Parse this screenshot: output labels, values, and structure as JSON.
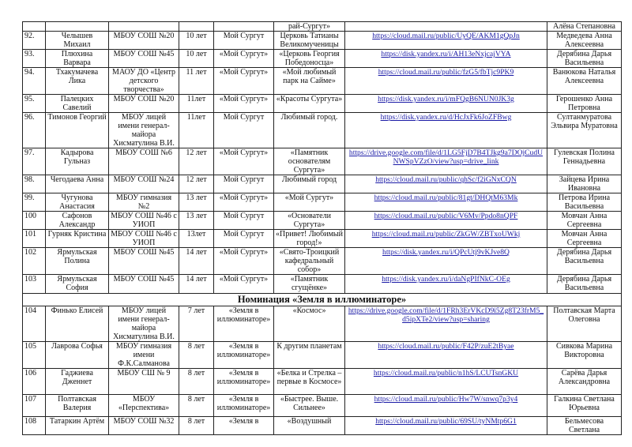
{
  "table": {
    "top_row": {
      "num": "",
      "name": "",
      "school": "",
      "age": "",
      "nomination": "",
      "title": "рай-Сургут»",
      "link": "",
      "teacher": "Алёна Степановна"
    },
    "rows_before": [
      {
        "num": "92.",
        "name": "Челышев Михаил",
        "school": "МБОУ СОШ №20",
        "age": "10 лет",
        "nomination": "Мой Сургут",
        "title": "Церковь Татианы Великомученицы",
        "link": "https://cloud.mail.ru/public/UyQE/AKM1gQpJn",
        "teacher": "Медведева Анна Алексеевна"
      },
      {
        "num": "93.",
        "name": "Плюхина Варвара",
        "school": "МБОУ СОШ №45",
        "age": "10 лет",
        "nomination": "«Мой Сургут»",
        "title": "«Церковь Георгия Победоносца»",
        "link": "https://disk.yandex.ru/i/AH13eNxjcajVYA",
        "teacher": "Дерябина Дарья Васильевна"
      },
      {
        "num": "94.",
        "name": "Тхакумачева Лика",
        "school": "МАОУ ДО «Центр детского творчества»",
        "age": "11 лет",
        "nomination": "«Мой Сургут»",
        "title": "«Мой любимый парк на Сайме»",
        "link": "https://cloud.mail.ru/public/fzG5/fbTjc9PK9",
        "teacher": "Ванюкова Наталья Алексеевна"
      },
      {
        "num": "95.",
        "name": "Палецких Савелий",
        "school": "МБОУ СОШ №20",
        "age": "11лет",
        "nomination": "«Мой Сургут»",
        "title": "«Красоты Сургута»",
        "link": "https://disk.yandex.ru/i/mFQgB6NUN0JK3g",
        "teacher": "Герошенко Анна Петровна"
      },
      {
        "num": "96.",
        "name": "Тимонов Георгий",
        "school": "МБОУ лицей имени генерал-майора Хисматулина В.И.",
        "age": "11лет",
        "nomination": "Мой Сургут",
        "title": "Любимый город.",
        "link": "https://disk.yandex.ru/d/HcJxFk6JoZFBwg",
        "teacher": "Султанмуратова Эльвира Муратовна"
      },
      {
        "num": "97.",
        "name": "Кадырова Гульназ",
        "school": "МБОУ СОШ №6",
        "age": "12 лет",
        "nomination": "«Мой Сургут»",
        "title": "«Памятник основателям Сургута»",
        "link": "https://drive.google.com/file/d/1LG5FjD7B4TJkg9a7DOjCudUNWSpVZzO/view?usp=drive_link",
        "teacher": "Гулевская Полина Геннадьевна"
      },
      {
        "num": "98.",
        "name": "Чегодаева Анна",
        "school": "МБОУ СОШ №24",
        "age": "12 лет",
        "nomination": "Мой Сургут",
        "title": "Любимый город",
        "link": "https://cloud.mail.ru/public/qhSc/f2iGNxCQN",
        "teacher": "Зайцева Ирина Ивановна"
      },
      {
        "num": "99.",
        "name": "Чугунова Анастасия",
        "school": "МБОУ гимназия №2",
        "age": "13 лет",
        "nomination": "«Мой Сургут»",
        "title": "«Мой Сургут»",
        "link": "https://cloud.mail.ru/public/81gt/DHQtM63Mk",
        "teacher": "Петрова Ирина Васильевна"
      },
      {
        "num": "100",
        "name": "Сафонов Александр",
        "school": "МБОУ СОШ №46 с УИОП",
        "age": "13 лет",
        "nomination": "Мой Сургут",
        "title": "«Основатели Сургута»",
        "link": "https://cloud.mail.ru/public/V6Mv/Ppdo8nQPF",
        "teacher": "Мовчан Анна Сергеевна"
      },
      {
        "num": "101",
        "name": "Гурняк Кристина",
        "school": "МБОУ СОШ №46 с УИОП",
        "age": "13лет",
        "nomination": "Мой Сургут",
        "title": "«Привет! Любимый город!»",
        "link": "https://cloud.mail.ru/public/ZkGW/ZBTxoUWkj",
        "teacher": "Мовчан Анна Сергеевна"
      },
      {
        "num": "102",
        "name": "Ярмульская Полина",
        "school": "МБОУ СОШ №45",
        "age": "14 лет",
        "nomination": "«Мой Сургут»",
        "title": "«Свято-Троицкий кафедральный собор»",
        "link": "https://disk.yandex.ru/i/QPcUtj9vKJve8Q",
        "teacher": "Дерябина Дарья Васильевна"
      },
      {
        "num": "103",
        "name": "Ярмульская София",
        "school": "МБОУ СОШ №45",
        "age": "14 лет",
        "nomination": "«Мой Сургут»",
        "title": "«Памятник сгущёнке»",
        "link": "https://disk.yandex.ru/i/daNgPIfNkC-OEg",
        "teacher": "Дерябина Дарья Васильевна"
      }
    ],
    "section_title": "Номинация «Земля в иллюминаторе»",
    "rows_after": [
      {
        "num": "104",
        "name": "Финько Елисей",
        "school": "МБОУ лицей имени генерал-майора Хисматулина В.И.",
        "age": "7 лет",
        "nomination": "«Земля в иллюминаторе»",
        "title": "«Космос»",
        "link": "https://drive.google.com/file/d/1FRh3ErVKcD9i5Zg8T23frM5_d5ipXTe2/view?usp=sharing",
        "teacher": "Полтавская Марта Олеговна"
      },
      {
        "num": "105",
        "name": "Лаврова Софья",
        "school": "МБОУ гимназия имени Ф.К.Салманова",
        "age": "8 лет",
        "nomination": "«Земля в иллюминаторе»",
        "title": "К другим планетам",
        "link": "https://cloud.mail.ru/public/F42P/zuE2tByae",
        "teacher": "Сивкова Марина Викторовна"
      },
      {
        "num": "106",
        "name": "Гаджиева Дженнет",
        "school": "МБОУ СШ № 9",
        "age": "8 лет",
        "nomination": "«Земля в иллюминаторе»",
        "title": "«Белка и Стрелка – первые в Космосе»",
        "link": "https://cloud.mail.ru/public/n1hS/LCUTsnGKU",
        "teacher": "Сарёва Дарья Александровна"
      },
      {
        "num": "107",
        "name": "Полтавская Валерия",
        "school": "МБОУ «Перспектива»",
        "age": "8 лет",
        "nomination": "«Земля в иллюминаторе»",
        "title": "«Быстрее. Выше. Сильнее»",
        "link": "https://cloud.mail.ru/public/Hw7W/snwq7p3y4",
        "teacher": "Галкина Светлана Юрьевна"
      },
      {
        "num": "108",
        "name": "Татаркин Артём",
        "school": "МБОУ СОШ №32",
        "age": "8 лет",
        "nomination": "«Земля в",
        "title": "«Воздушный",
        "link": "https://cloud.mail.ru/public/69SU/tyNMtp6G1",
        "teacher": "Бельмесова Светлана"
      }
    ]
  }
}
